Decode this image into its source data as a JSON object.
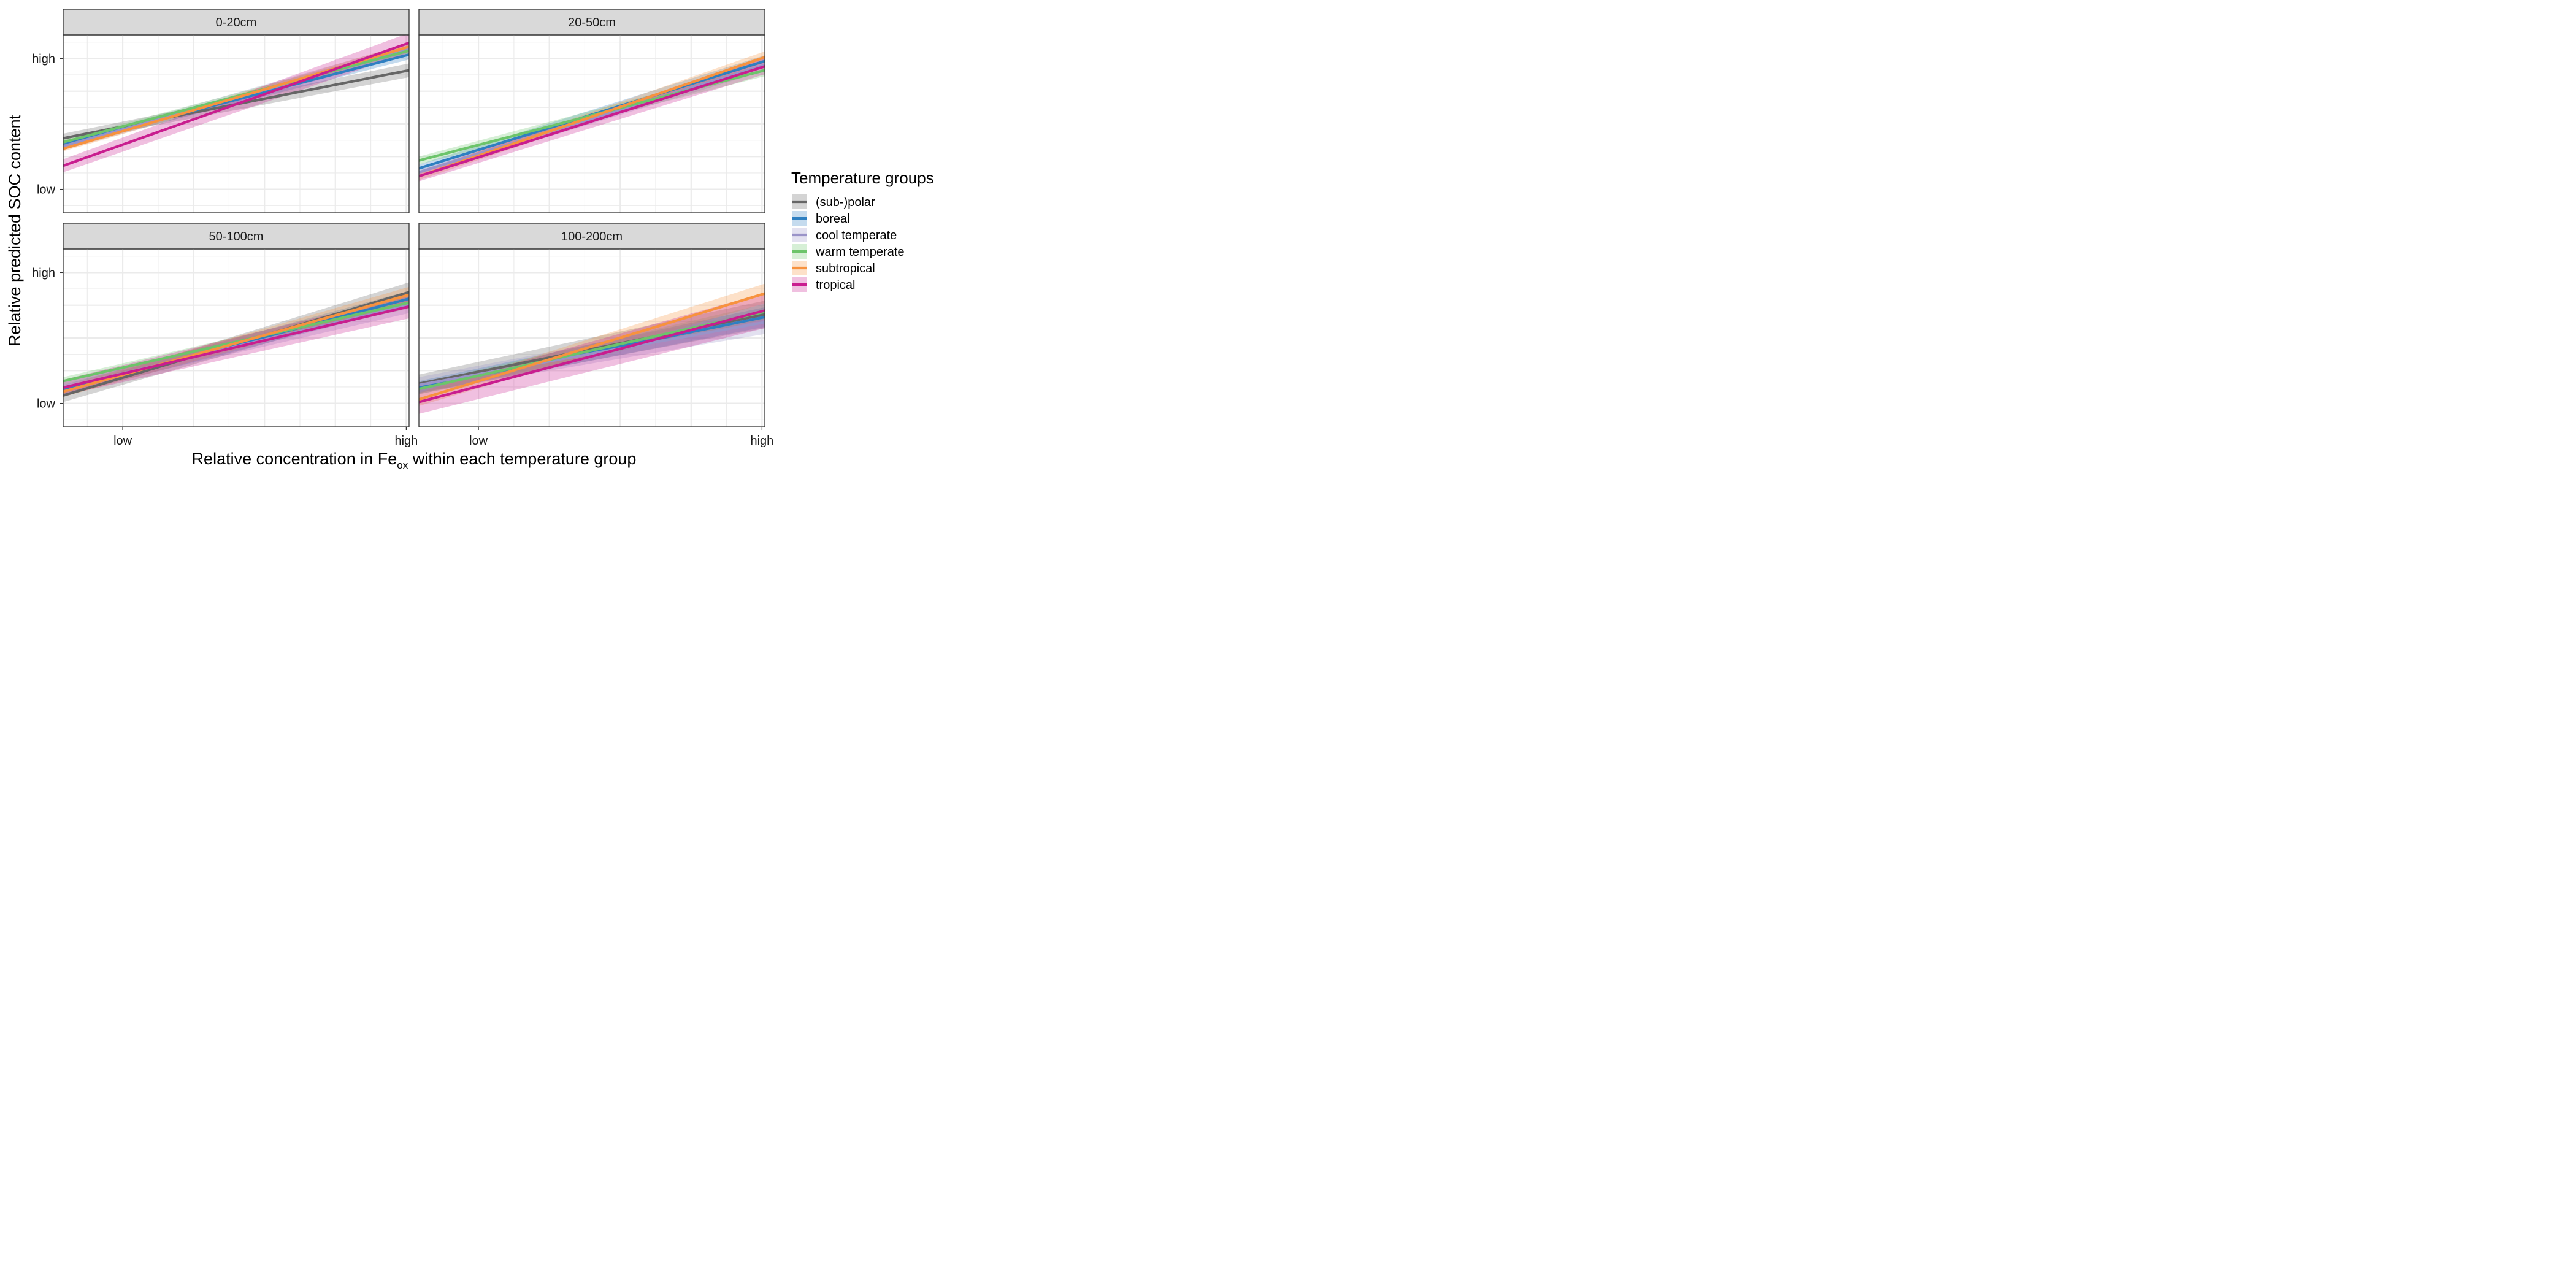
{
  "chart_data": {
    "type": "line",
    "xlabel": {
      "prefix": "Relative concentration in Fe",
      "subscript": "ox",
      "suffix": " within each temperature group"
    },
    "ylabel": "Relative predicted SOC content",
    "x_ticks": [
      "low",
      "high"
    ],
    "y_ticks": [
      "low",
      "high"
    ],
    "xlim": [
      -0.21,
      1.01
    ],
    "x_tick_positions": [
      0,
      1
    ],
    "ylim": [
      -0.18,
      1.18
    ],
    "y_tick_positions": [
      0,
      1
    ],
    "grid": true,
    "legend": {
      "title": "Temperature groups",
      "placement": "right"
    },
    "series_styles": [
      {
        "name": "(sub-)polar",
        "color": "#666666"
      },
      {
        "name": "boreal",
        "color": "#2e7fc1"
      },
      {
        "name": "cool temperate",
        "color": "#9a93c8"
      },
      {
        "name": "warm temperate",
        "color": "#6cc46a"
      },
      {
        "name": "subtropical",
        "color": "#f7923e"
      },
      {
        "name": "tropical",
        "color": "#c91d8f"
      }
    ],
    "panels": [
      {
        "title": "0-20cm",
        "series": [
          {
            "name": "(sub-)polar",
            "y_at_xmin": 0.39,
            "y_at_xmax": 0.91,
            "band": 0.035
          },
          {
            "name": "boreal",
            "y_at_xmin": 0.34,
            "y_at_xmax": 1.03,
            "band": 0.025
          },
          {
            "name": "cool temperate",
            "y_at_xmin": 0.33,
            "y_at_xmax": 1.07,
            "band": 0.03
          },
          {
            "name": "warm temperate",
            "y_at_xmin": 0.36,
            "y_at_xmax": 1.06,
            "band": 0.02
          },
          {
            "name": "subtropical",
            "y_at_xmin": 0.31,
            "y_at_xmax": 1.09,
            "band": 0.02
          },
          {
            "name": "tropical",
            "y_at_xmin": 0.18,
            "y_at_xmax": 1.12,
            "band": 0.05
          }
        ]
      },
      {
        "title": "20-50cm",
        "series": [
          {
            "name": "boreal",
            "y_at_xmin": 0.16,
            "y_at_xmax": 0.98,
            "band": 0.03
          },
          {
            "name": "cool temperate",
            "y_at_xmin": 0.13,
            "y_at_xmax": 0.95,
            "band": 0.03
          },
          {
            "name": "warm temperate",
            "y_at_xmin": 0.22,
            "y_at_xmax": 0.91,
            "band": 0.03
          },
          {
            "name": "subtropical",
            "y_at_xmin": 0.1,
            "y_at_xmax": 1.01,
            "band": 0.03
          },
          {
            "name": "tropical",
            "y_at_xmin": 0.1,
            "y_at_xmax": 0.94,
            "band": 0.04
          }
        ]
      },
      {
        "title": "50-100cm",
        "series": [
          {
            "name": "(sub-)polar",
            "y_at_xmin": 0.06,
            "y_at_xmax": 0.85,
            "band": 0.05
          },
          {
            "name": "boreal",
            "y_at_xmin": 0.1,
            "y_at_xmax": 0.8,
            "band": 0.04
          },
          {
            "name": "cool temperate",
            "y_at_xmin": 0.12,
            "y_at_xmax": 0.75,
            "band": 0.04
          },
          {
            "name": "warm temperate",
            "y_at_xmin": 0.17,
            "y_at_xmax": 0.77,
            "band": 0.03
          },
          {
            "name": "subtropical",
            "y_at_xmin": 0.09,
            "y_at_xmax": 0.83,
            "band": 0.04
          },
          {
            "name": "tropical",
            "y_at_xmin": 0.12,
            "y_at_xmax": 0.74,
            "band": 0.06
          }
        ]
      },
      {
        "title": "100-200cm",
        "series": [
          {
            "name": "(sub-)polar",
            "y_at_xmin": 0.15,
            "y_at_xmax": 0.68,
            "band": 0.07
          },
          {
            "name": "boreal",
            "y_at_xmin": 0.12,
            "y_at_xmax": 0.66,
            "band": 0.05
          },
          {
            "name": "cool temperate",
            "y_at_xmin": 0.14,
            "y_at_xmax": 0.62,
            "band": 0.06
          },
          {
            "name": "warm temperate",
            "y_at_xmin": 0.11,
            "y_at_xmax": 0.7,
            "band": 0.04
          },
          {
            "name": "subtropical",
            "y_at_xmin": 0.03,
            "y_at_xmax": 0.84,
            "band": 0.05
          },
          {
            "name": "tropical",
            "y_at_xmin": 0.01,
            "y_at_xmax": 0.71,
            "band": 0.09
          }
        ]
      }
    ]
  }
}
